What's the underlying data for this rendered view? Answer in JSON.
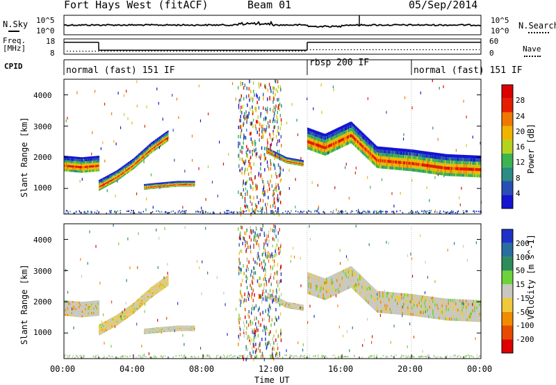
{
  "header": {
    "station": "Fort Hays West (fitACF)",
    "beam": "Beam 01",
    "date": "05/Sep/2014"
  },
  "top_labels": {
    "nsky": "N.Sky",
    "nsearch": "N.Search",
    "freq_line1": "Freq.",
    "freq_line2": "[MHz]",
    "nave": "Nave",
    "cpid": "CPID",
    "noise_ticks_left": [
      "10^5",
      "10^0"
    ],
    "noise_ticks_right": [
      "10^5",
      "10^0"
    ],
    "freq_ticks_left": [
      "18",
      "8"
    ],
    "nave_ticks_right": [
      "60",
      "0"
    ]
  },
  "cpid_segments": [
    {
      "label": "normal (fast) 151 IF",
      "start_h": 0,
      "end_h": 14
    },
    {
      "label": "rbsp 200 IF",
      "start_h": 14,
      "end_h": 20
    },
    {
      "label": "normal (fast) 151 IF",
      "start_h": 20,
      "end_h": 24
    }
  ],
  "x_axis": {
    "label": "Time UT",
    "ticks": [
      "00:00",
      "04:00",
      "08:00",
      "12:00",
      "16:00",
      "20:00",
      "00:00"
    ]
  },
  "power_panel": {
    "ylabel": "Slant Range [km]",
    "yticks": [
      "1000",
      "2000",
      "3000",
      "4000"
    ],
    "colorbar_label": "Power [dB]",
    "colorbar_ticks": [
      "4",
      "8",
      "12",
      "16",
      "20",
      "24",
      "28"
    ],
    "colors": [
      "#1414d2",
      "#2850b4",
      "#2a8c82",
      "#3cb450",
      "#b4d21e",
      "#f0b400",
      "#f07800",
      "#e61e00",
      "#dc0000"
    ]
  },
  "velocity_panel": {
    "ylabel": "Slant Range [km]",
    "yticks": [
      "1000",
      "2000",
      "3000",
      "4000"
    ],
    "colorbar_label": "Velocity [m s^-1]",
    "colorbar_ticks": [
      "200",
      "100",
      "50",
      "15",
      "-15",
      "-50",
      "-100",
      "-200"
    ],
    "colors": [
      "#1e32c8",
      "#2a6e9e",
      "#2e8c5a",
      "#6ed23c",
      "#c8c8c0",
      "#f0c83c",
      "#f08c00",
      "#e64b00",
      "#dc0000"
    ]
  },
  "chart_data": {
    "type": "heatmap",
    "x_unit": "hours UT",
    "xlim": [
      0,
      24
    ],
    "ylim": [
      180,
      4500
    ],
    "power_bands": [
      {
        "name": "early",
        "points": [
          [
            0.0,
            1800
          ],
          [
            1.0,
            1750
          ],
          [
            2.0,
            1800
          ]
        ],
        "width": 500
      },
      {
        "name": "rise",
        "points": [
          [
            2.0,
            1100
          ],
          [
            3.0,
            1400
          ],
          [
            4.0,
            1800
          ],
          [
            5.0,
            2300
          ],
          [
            6.0,
            2700
          ]
        ],
        "width": 350
      },
      {
        "name": "low",
        "points": [
          [
            4.6,
            1050
          ],
          [
            5.5,
            1100
          ],
          [
            6.5,
            1150
          ],
          [
            7.5,
            1150
          ]
        ],
        "width": 180
      },
      {
        "name": "late",
        "points": [
          [
            14.0,
            2600
          ],
          [
            15.0,
            2400
          ],
          [
            16.5,
            2800
          ],
          [
            18.0,
            2000
          ],
          [
            20.0,
            1900
          ],
          [
            22.0,
            1750
          ],
          [
            24.0,
            1700
          ]
        ],
        "width": 700
      },
      {
        "name": "side",
        "points": [
          [
            11.7,
            2200
          ],
          [
            12.8,
            1900
          ],
          [
            13.8,
            1800
          ]
        ],
        "width": 200
      }
    ],
    "noise": {
      "sky_level": 3.0,
      "search_level": 2.8
    },
    "frequency": {
      "unit": "MHz",
      "segments": [
        {
          "start_h": 0,
          "end_h": 2,
          "value": 17
        },
        {
          "start_h": 2,
          "end_h": 14,
          "value": 11
        },
        {
          "start_h": 14,
          "end_h": 24,
          "value": 17
        }
      ]
    },
    "nave": {
      "segments": [
        {
          "start_h": 0,
          "end_h": 14,
          "value": 8
        },
        {
          "start_h": 14,
          "end_h": 24,
          "value": 15
        }
      ]
    }
  }
}
